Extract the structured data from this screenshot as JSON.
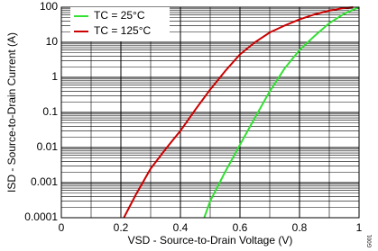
{
  "chart_data": {
    "type": "line",
    "x_label": "VSD - Source-to-Drain Voltage (V)",
    "y_label": "ISD - Source-to-Drain Current (A)",
    "figure_id": "G001",
    "log_y": true,
    "grid": true,
    "minor_grid": true,
    "legend_position": "upper-left",
    "xlim": [
      0,
      1
    ],
    "xticks": [
      0,
      0.2,
      0.4,
      0.6,
      0.8,
      1
    ],
    "ylim": [
      0.0001,
      100
    ],
    "yticks": [
      0.0001,
      0.001,
      0.01,
      0.1,
      1,
      10,
      100
    ],
    "series": [
      {
        "name": "TC = 25°C",
        "color": "#33e033",
        "x": [
          0.48,
          0.5,
          0.55,
          0.6,
          0.65,
          0.7,
          0.75,
          0.8,
          0.85,
          0.9,
          0.95,
          1
        ],
        "values": [
          0.0001,
          0.0003,
          0.002,
          0.012,
          0.07,
          0.4,
          1.8,
          6,
          15,
          35,
          65,
          100
        ]
      },
      {
        "name": "TC = 125°C",
        "color": "#cc0000",
        "x": [
          0.21,
          0.25,
          0.3,
          0.35,
          0.4,
          0.45,
          0.5,
          0.55,
          0.6,
          0.65,
          0.7,
          0.75,
          0.8,
          0.85,
          0.9,
          0.95,
          0.98
        ],
        "values": [
          0.0001,
          0.00045,
          0.0025,
          0.009,
          0.03,
          0.12,
          0.45,
          1.5,
          4.5,
          10,
          19,
          30,
          45,
          62,
          80,
          95,
          100
        ]
      }
    ]
  }
}
